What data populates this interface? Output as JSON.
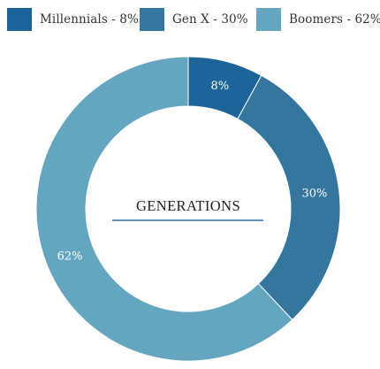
{
  "chart_data": {
    "type": "pie",
    "variant": "donut",
    "title": "GENERATIONS",
    "categories": [
      "Millennials",
      "Gen X",
      "Boomers"
    ],
    "values": [
      8,
      30,
      62
    ],
    "unit": "%",
    "slice_labels": [
      "8%",
      "30%",
      "62%"
    ],
    "legend_position": "top",
    "legend": [
      {
        "label": "Millennials - 8%",
        "color": "#1c6499"
      },
      {
        "label": "Gen X - 30%",
        "color": "#35769f"
      },
      {
        "label": "Boomers - 62%",
        "color": "#64a6bf"
      }
    ],
    "colors": [
      "#1c6499",
      "#35769f",
      "#64a6bf"
    ],
    "title_underline_color": "#2f6aa0"
  }
}
